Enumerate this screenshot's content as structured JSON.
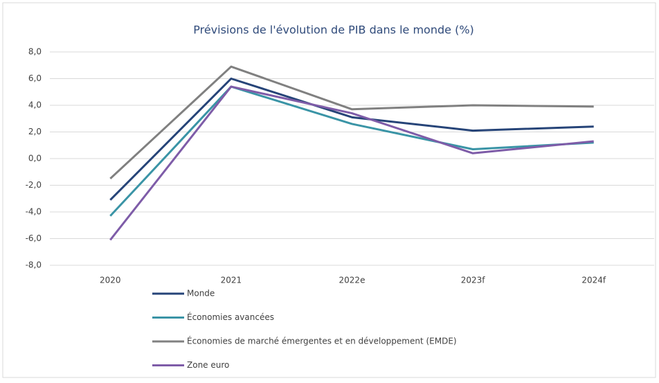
{
  "chart_data": {
    "type": "line",
    "title": "Prévisions de l'évolution de PIB dans le monde (%)",
    "categories": [
      "2020",
      "2021",
      "2022e",
      "2023f",
      "2024f"
    ],
    "series": [
      {
        "name": "Monde",
        "color": "#264478",
        "values": [
          -3.1,
          6.0,
          3.1,
          2.1,
          2.4
        ]
      },
      {
        "name": "Économies avancées",
        "color": "#3a94a6",
        "values": [
          -4.3,
          5.4,
          2.6,
          0.7,
          1.2
        ]
      },
      {
        "name": "Économies de marché émergentes et en développement (EMDE)",
        "color": "#808080",
        "values": [
          -1.5,
          6.9,
          3.7,
          4.0,
          3.9
        ]
      },
      {
        "name": "Zone euro",
        "color": "#7e5ca8",
        "values": [
          -6.1,
          5.4,
          3.4,
          0.4,
          1.3
        ]
      }
    ],
    "ylim": [
      -8,
      8
    ],
    "yticks": [
      {
        "value": 8,
        "label": "8,0"
      },
      {
        "value": 6,
        "label": "6,0"
      },
      {
        "value": 4,
        "label": "4,0"
      },
      {
        "value": 2,
        "label": "2,0"
      },
      {
        "value": 0,
        "label": "0,0"
      },
      {
        "value": -2,
        "label": "-2,0"
      },
      {
        "value": -4,
        "label": "-4,0"
      },
      {
        "value": -6,
        "label": "-6,0"
      },
      {
        "value": -8,
        "label": "-8,0"
      }
    ],
    "grid": true,
    "legend": "bottom"
  }
}
